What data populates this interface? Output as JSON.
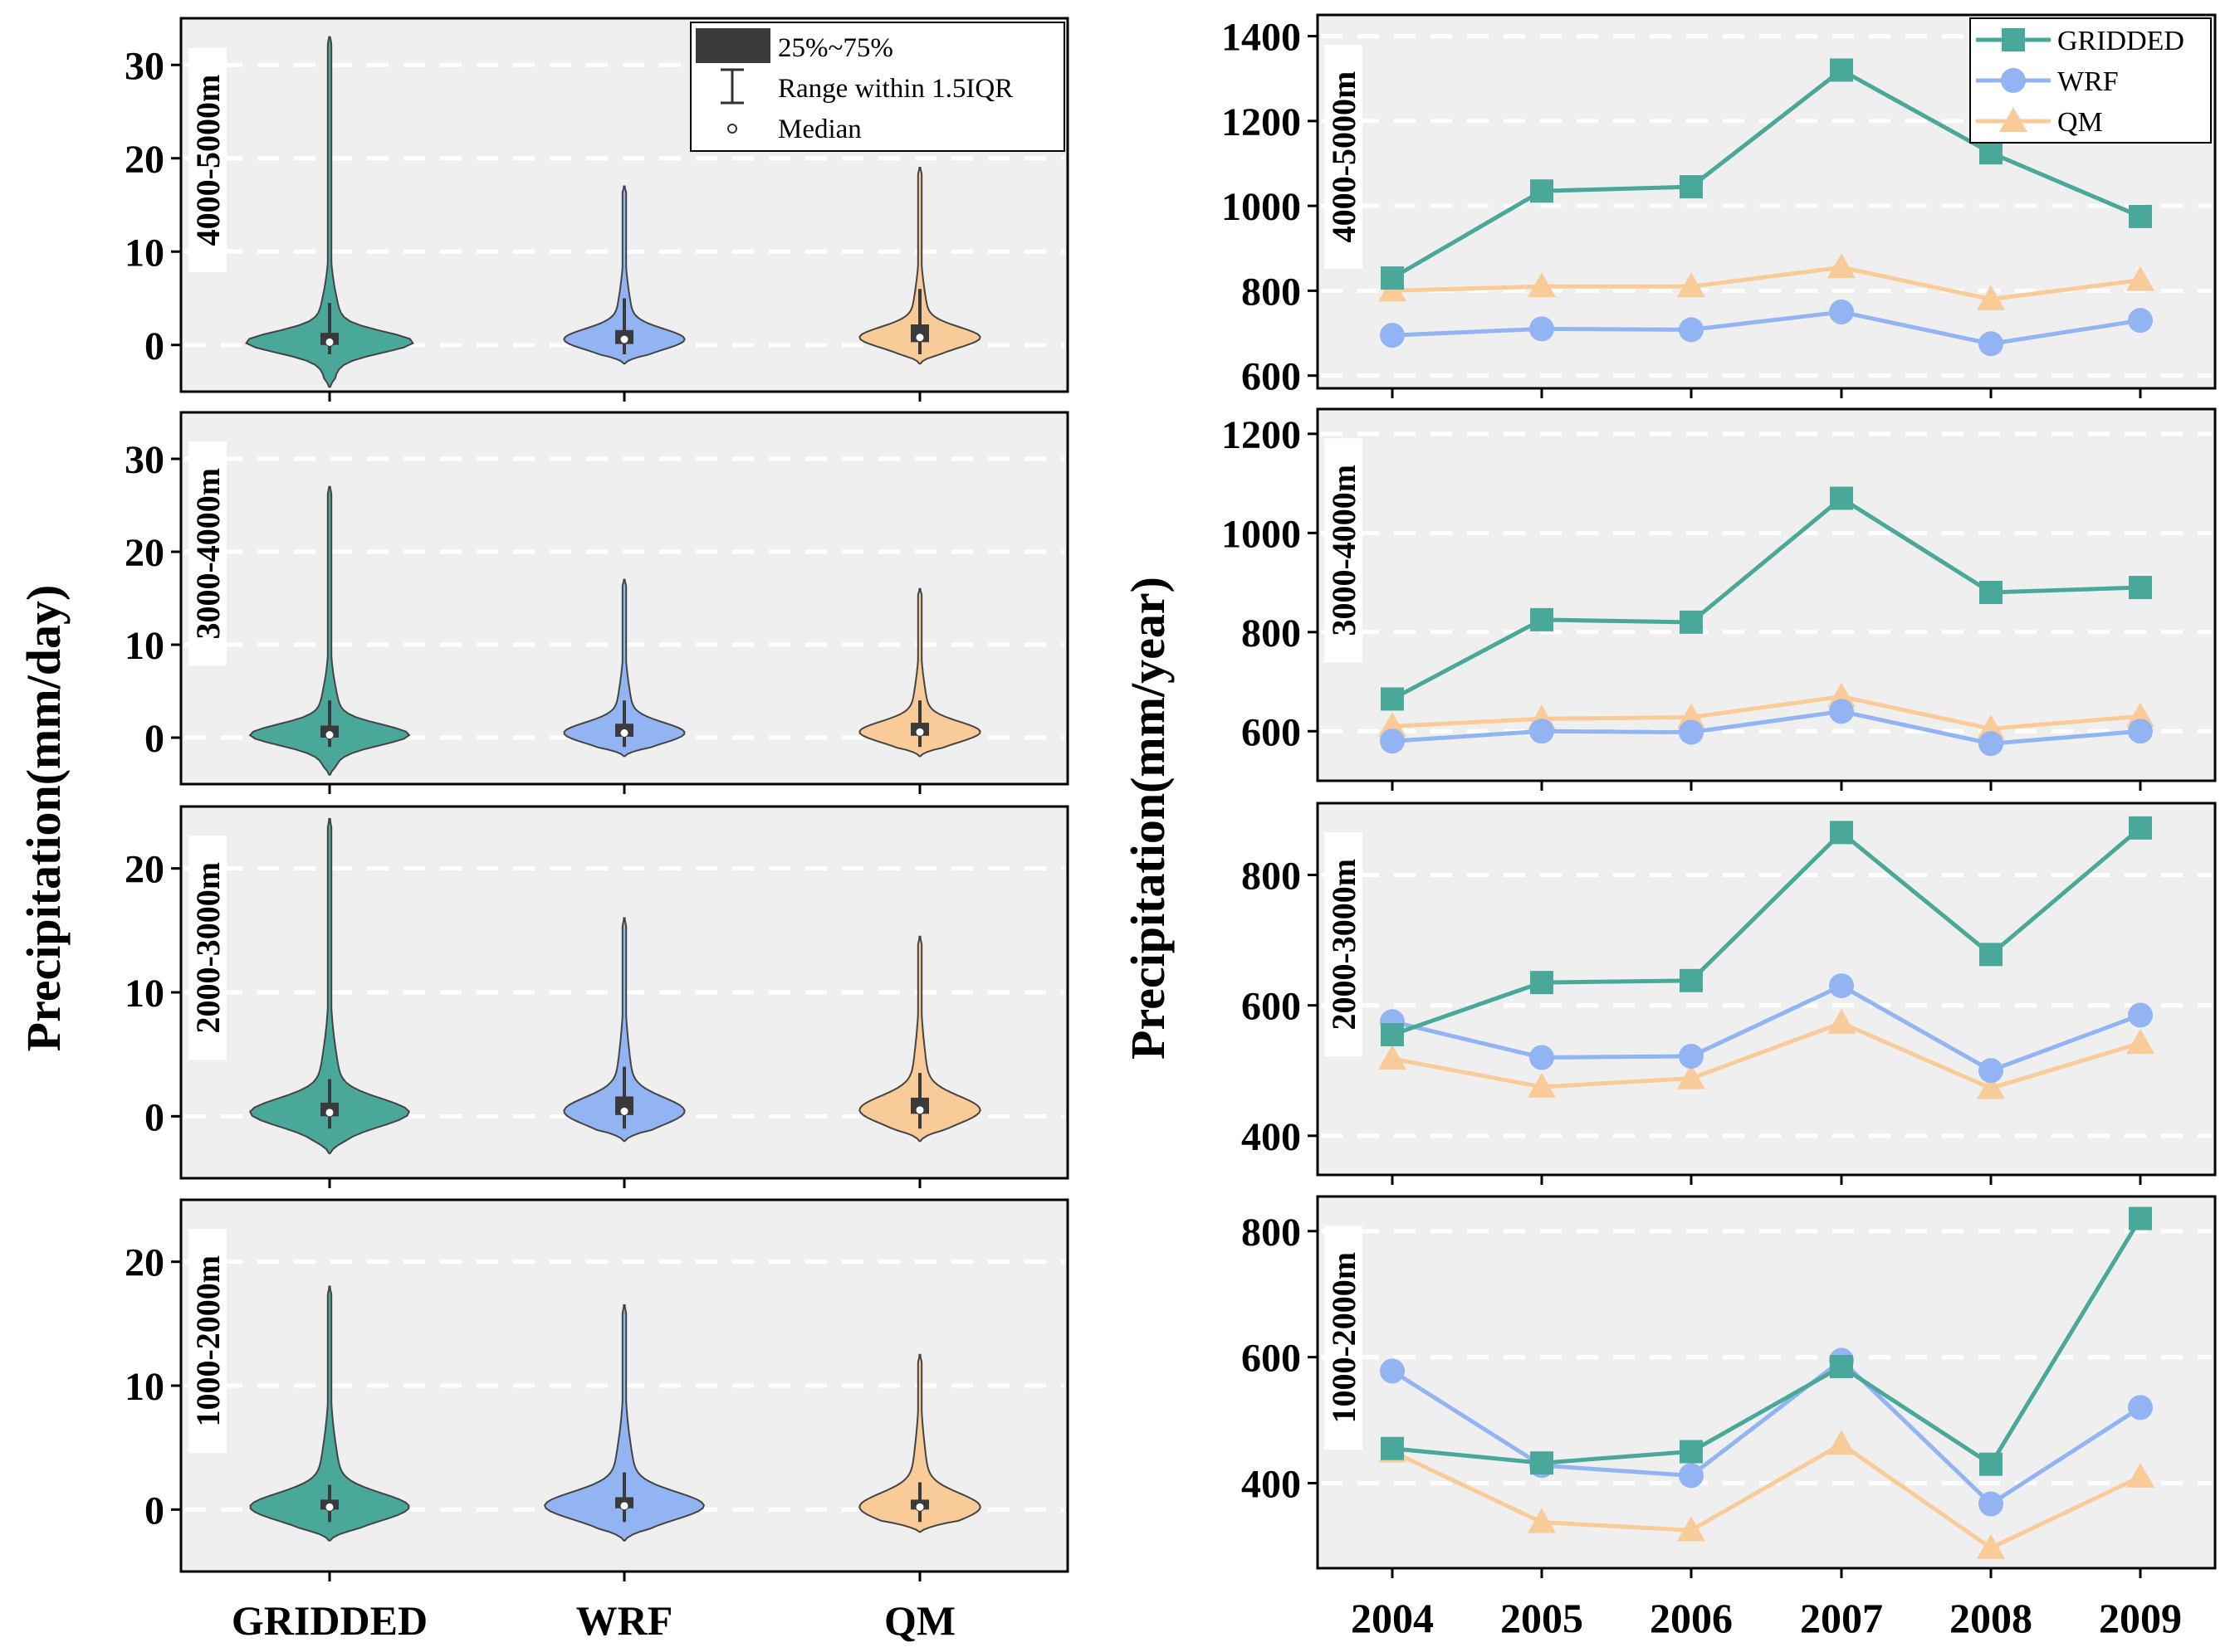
{
  "colors": {
    "gridded": "#4aa89b",
    "wrf": "#93b4f2",
    "qm": "#f9cb98",
    "panel_bg": "#efefef",
    "grid_line": "#ffffff",
    "box": "#3a3a3a"
  },
  "left_ylabel": "Precipitation(mm/day)",
  "right_ylabel": "Precipitation(mm/year)",
  "violin_legend": {
    "box_label": "25%~75%",
    "whisker_label": "Range within 1.5IQR",
    "median_label": "Median"
  },
  "line_legend": [
    "GRIDDED",
    "WRF",
    "QM"
  ],
  "chart_data": [
    {
      "type": "violin",
      "title": "4000-5000m",
      "categories": [
        "GRIDDED",
        "WRF",
        "QM"
      ],
      "ylim": [
        -5,
        35
      ],
      "yticks": [
        0,
        10,
        20,
        30
      ],
      "series": [
        {
          "name": "GRIDDED",
          "max": 33,
          "min": -4.5,
          "q1": 0,
          "q3": 1.3,
          "median": 0.3,
          "whisker_top": 4.5,
          "body_halfwidth": 1.0
        },
        {
          "name": "WRF",
          "max": 17,
          "min": -2,
          "q1": 0.1,
          "q3": 1.6,
          "median": 0.6,
          "whisker_top": 5,
          "body_halfwidth": 0.72
        },
        {
          "name": "QM",
          "max": 19,
          "min": -2,
          "q1": 0.3,
          "q3": 2.2,
          "median": 0.8,
          "whisker_top": 6,
          "body_halfwidth": 0.72
        }
      ]
    },
    {
      "type": "violin",
      "title": "3000-4000m",
      "categories": [
        "GRIDDED",
        "WRF",
        "QM"
      ],
      "ylim": [
        -5,
        35
      ],
      "yticks": [
        0,
        10,
        20,
        30
      ],
      "series": [
        {
          "name": "GRIDDED",
          "max": 27,
          "min": -4,
          "q1": 0,
          "q3": 1.3,
          "median": 0.3,
          "whisker_top": 4,
          "body_halfwidth": 0.95
        },
        {
          "name": "WRF",
          "max": 17,
          "min": -2,
          "q1": 0.1,
          "q3": 1.5,
          "median": 0.5,
          "whisker_top": 4,
          "body_halfwidth": 0.72
        },
        {
          "name": "QM",
          "max": 16,
          "min": -2,
          "q1": 0.2,
          "q3": 1.6,
          "median": 0.6,
          "whisker_top": 4,
          "body_halfwidth": 0.72
        }
      ]
    },
    {
      "type": "violin",
      "title": "2000-3000m",
      "categories": [
        "GRIDDED",
        "WRF",
        "QM"
      ],
      "ylim": [
        -5,
        25
      ],
      "yticks": [
        0,
        10,
        20
      ],
      "series": [
        {
          "name": "GRIDDED",
          "max": 24,
          "min": -3,
          "q1": 0,
          "q3": 1.1,
          "median": 0.3,
          "whisker_top": 3,
          "body_halfwidth": 0.95
        },
        {
          "name": "WRF",
          "max": 16,
          "min": -2,
          "q1": 0.1,
          "q3": 1.6,
          "median": 0.4,
          "whisker_top": 4,
          "body_halfwidth": 0.72
        },
        {
          "name": "QM",
          "max": 14.5,
          "min": -2,
          "q1": 0.2,
          "q3": 1.5,
          "median": 0.5,
          "whisker_top": 3.5,
          "body_halfwidth": 0.72
        }
      ]
    },
    {
      "type": "violin",
      "title": "1000-2000m",
      "categories": [
        "GRIDDED",
        "WRF",
        "QM"
      ],
      "ylim": [
        -5,
        25
      ],
      "yticks": [
        0,
        10,
        20
      ],
      "series": [
        {
          "name": "GRIDDED",
          "max": 18,
          "min": -2.5,
          "q1": 0,
          "q3": 0.8,
          "median": 0.2,
          "whisker_top": 2,
          "body_halfwidth": 0.95
        },
        {
          "name": "WRF",
          "max": 16.5,
          "min": -2.5,
          "q1": 0.1,
          "q3": 1.0,
          "median": 0.3,
          "whisker_top": 3,
          "body_halfwidth": 0.95
        },
        {
          "name": "QM",
          "max": 12.5,
          "min": -1.8,
          "q1": 0,
          "q3": 0.8,
          "median": 0.2,
          "whisker_top": 2.2,
          "body_halfwidth": 0.72
        }
      ]
    },
    {
      "type": "line",
      "title": "4000-5000m",
      "x": [
        "2004",
        "2005",
        "2006",
        "2007",
        "2008",
        "2009"
      ],
      "ylim": [
        570,
        1450
      ],
      "yticks": [
        600,
        800,
        1000,
        1200,
        1400
      ],
      "series": [
        {
          "name": "GRIDDED",
          "values": [
            830,
            1035,
            1045,
            1320,
            1125,
            975
          ]
        },
        {
          "name": "WRF",
          "values": [
            695,
            710,
            708,
            750,
            675,
            730
          ]
        },
        {
          "name": "QM",
          "values": [
            800,
            810,
            810,
            855,
            780,
            825
          ]
        }
      ]
    },
    {
      "type": "line",
      "title": "3000-4000m",
      "x": [
        "2004",
        "2005",
        "2006",
        "2007",
        "2008",
        "2009"
      ],
      "ylim": [
        500,
        1250
      ],
      "yticks": [
        600,
        800,
        1000,
        1200
      ],
      "series": [
        {
          "name": "GRIDDED",
          "values": [
            665,
            825,
            820,
            1070,
            880,
            890
          ]
        },
        {
          "name": "WRF",
          "values": [
            580,
            600,
            598,
            640,
            575,
            600
          ]
        },
        {
          "name": "QM",
          "values": [
            610,
            625,
            628,
            670,
            605,
            630
          ]
        }
      ]
    },
    {
      "type": "line",
      "title": "2000-3000m",
      "x": [
        "2004",
        "2005",
        "2006",
        "2007",
        "2008",
        "2009"
      ],
      "ylim": [
        340,
        910
      ],
      "yticks": [
        400,
        600,
        800
      ],
      "series": [
        {
          "name": "GRIDDED",
          "values": [
            555,
            635,
            638,
            865,
            678,
            872
          ]
        },
        {
          "name": "WRF",
          "values": [
            575,
            520,
            522,
            630,
            500,
            585
          ]
        },
        {
          "name": "QM",
          "values": [
            518,
            475,
            488,
            573,
            473,
            542
          ]
        }
      ]
    },
    {
      "type": "line",
      "title": "1000-2000m",
      "x": [
        "2004",
        "2005",
        "2006",
        "2007",
        "2008",
        "2009"
      ],
      "ylim": [
        265,
        855
      ],
      "yticks": [
        400,
        600,
        800
      ],
      "series": [
        {
          "name": "GRIDDED",
          "values": [
            455,
            432,
            450,
            585,
            430,
            820
          ]
        },
        {
          "name": "WRF",
          "values": [
            578,
            428,
            412,
            595,
            367,
            520
          ]
        },
        {
          "name": "QM",
          "values": [
            450,
            338,
            325,
            462,
            297,
            410
          ]
        }
      ]
    }
  ]
}
